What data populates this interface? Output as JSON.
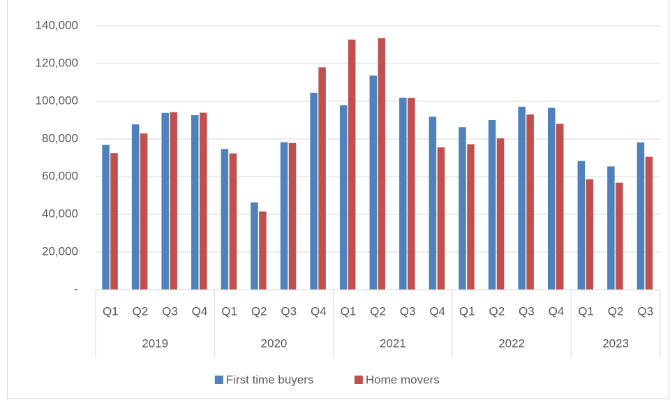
{
  "chart_data": {
    "type": "bar",
    "groups": [
      {
        "name": "2019",
        "categories": [
          "Q1",
          "Q2",
          "Q3",
          "Q4"
        ]
      },
      {
        "name": "2020",
        "categories": [
          "Q1",
          "Q2",
          "Q3",
          "Q4"
        ]
      },
      {
        "name": "2021",
        "categories": [
          "Q1",
          "Q2",
          "Q3",
          "Q4"
        ]
      },
      {
        "name": "2022",
        "categories": [
          "Q1",
          "Q2",
          "Q3",
          "Q4"
        ]
      },
      {
        "name": "2023",
        "categories": [
          "Q1",
          "Q2",
          "Q3"
        ]
      }
    ],
    "series": [
      {
        "name": "First time buyers",
        "color": "#4f81bd",
        "values": [
          76800,
          87700,
          93800,
          92600,
          74600,
          46300,
          78200,
          104500,
          97900,
          113600,
          101900,
          91800,
          86200,
          90000,
          97100,
          96500,
          68300,
          65400,
          78100
        ]
      },
      {
        "name": "Home movers",
        "color": "#c0504d",
        "values": [
          72500,
          82900,
          94200,
          93900,
          72300,
          41500,
          77800,
          118000,
          132700,
          133500,
          101800,
          75500,
          77200,
          80300,
          93000,
          88000,
          58600,
          56800,
          70500
        ]
      }
    ],
    "ylim": [
      0,
      140000
    ],
    "yticks": [
      {
        "value": 0,
        "label": "-"
      },
      {
        "value": 20000,
        "label": "20,000"
      },
      {
        "value": 40000,
        "label": "40,000"
      },
      {
        "value": 60000,
        "label": "60,000"
      },
      {
        "value": 80000,
        "label": "80,000"
      },
      {
        "value": 100000,
        "label": "100,000"
      },
      {
        "value": 120000,
        "label": "120,000"
      },
      {
        "value": 140000,
        "label": "140,000"
      }
    ],
    "grid": true,
    "legend": "bottom"
  }
}
